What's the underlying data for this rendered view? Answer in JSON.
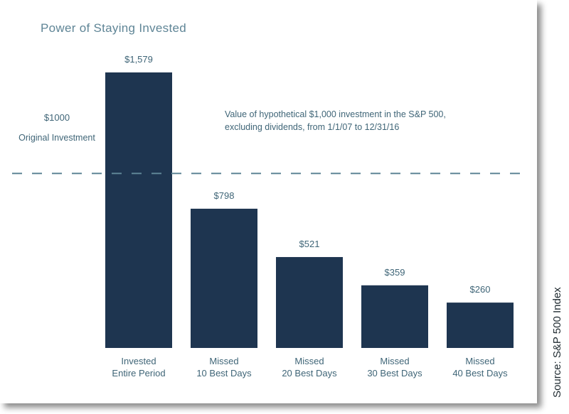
{
  "chart_data": {
    "type": "bar",
    "title": "Power of Staying Invested",
    "categories": [
      [
        "Invested",
        "Entire Period"
      ],
      [
        "Missed",
        "10 Best Days"
      ],
      [
        "Missed",
        "20 Best Days"
      ],
      [
        "Missed",
        "30 Best Days"
      ],
      [
        "Missed",
        "40 Best Days"
      ]
    ],
    "values": [
      1579,
      798,
      521,
      359,
      260
    ],
    "data_labels": [
      "$1,579",
      "$798",
      "$521",
      "$359",
      "$260"
    ],
    "ylim": [
      0,
      1579
    ],
    "reference_line": {
      "value": 1000,
      "label_value": "$1000",
      "label_text": "Original Investment",
      "style": "dashed"
    },
    "annotation": "Value of hypothetical $1,000 investment in the S&P 500, excluding dividends, from 1/1/07 to 12/31/16",
    "source": "Source: S&P 500 Index",
    "grid": false,
    "colors": {
      "bar": "#1e3550",
      "reference_line": "#5f8596",
      "label": "#3f6577"
    }
  }
}
